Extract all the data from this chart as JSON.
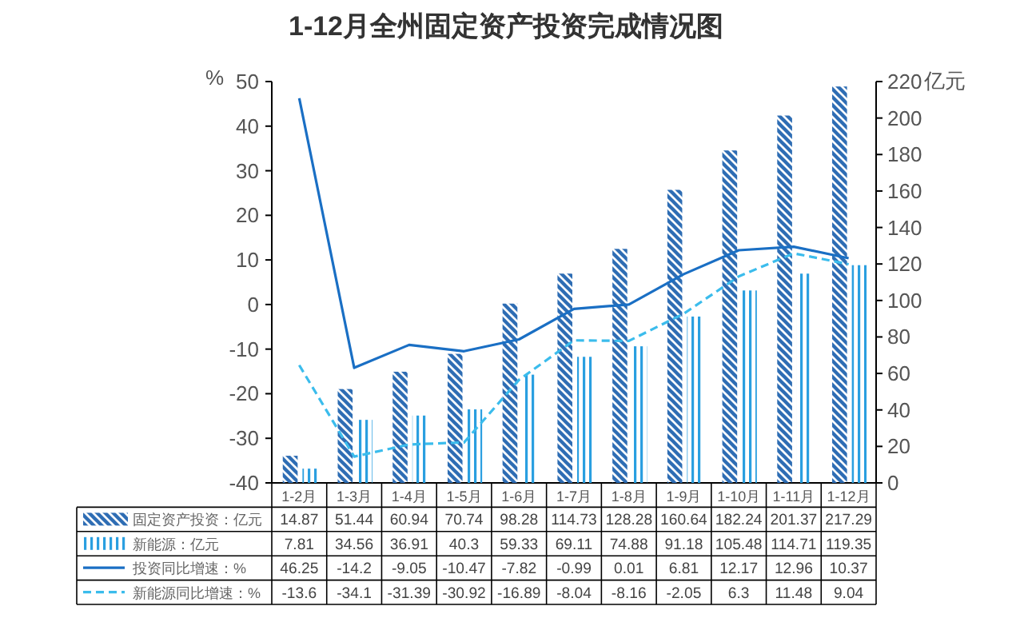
{
  "chart_data": {
    "type": "bar",
    "title": "1-12月全州固定资产投资完成情况图",
    "ylabel": "%",
    "y2label": "亿元",
    "categories": [
      "1-2月",
      "1-3月",
      "1-4月",
      "1-5月",
      "1-6月",
      "1-7月",
      "1-8月",
      "1-9月",
      "1-10月",
      "1-11月",
      "1-12月"
    ],
    "series": [
      {
        "name": "固定资产投资：亿元",
        "axis": "y2",
        "color": "#2e6db4",
        "values": [
          14.87,
          51.44,
          60.94,
          70.74,
          98.28,
          114.73,
          128.28,
          160.64,
          182.24,
          201.37,
          217.29
        ]
      },
      {
        "name": "新能源：亿元",
        "axis": "y2",
        "color": "#2a9fe0",
        "values": [
          7.81,
          34.56,
          36.91,
          40.3,
          59.33,
          69.11,
          74.88,
          91.18,
          105.48,
          114.71,
          119.35
        ]
      },
      {
        "name": "投资同比增速：%",
        "type": "line",
        "color": "#1a6fc4",
        "line_style": "solid",
        "values": [
          46.25,
          -14.2,
          -9.05,
          -10.47,
          -7.82,
          -0.99,
          0.01,
          6.81,
          12.17,
          12.96,
          10.37
        ]
      },
      {
        "name": "新能源同比增速：%",
        "type": "line",
        "color": "#3bbcec",
        "line_style": "dashed",
        "values": [
          -13.6,
          -34.1,
          -31.39,
          -30.92,
          -16.89,
          -8.04,
          -8.16,
          -2.05,
          6.3,
          11.48,
          9.04
        ]
      }
    ],
    "ylim": [
      -40,
      50
    ],
    "yticks": [
      -40,
      -30,
      -20,
      -10,
      0,
      10,
      20,
      30,
      40,
      50
    ],
    "y2lim": [
      0,
      220
    ],
    "y2ticks": [
      0,
      20,
      40,
      60,
      80,
      100,
      120,
      140,
      160,
      180,
      200,
      220
    ],
    "data_labels": true,
    "legend": "bottom",
    "marker": "none"
  }
}
